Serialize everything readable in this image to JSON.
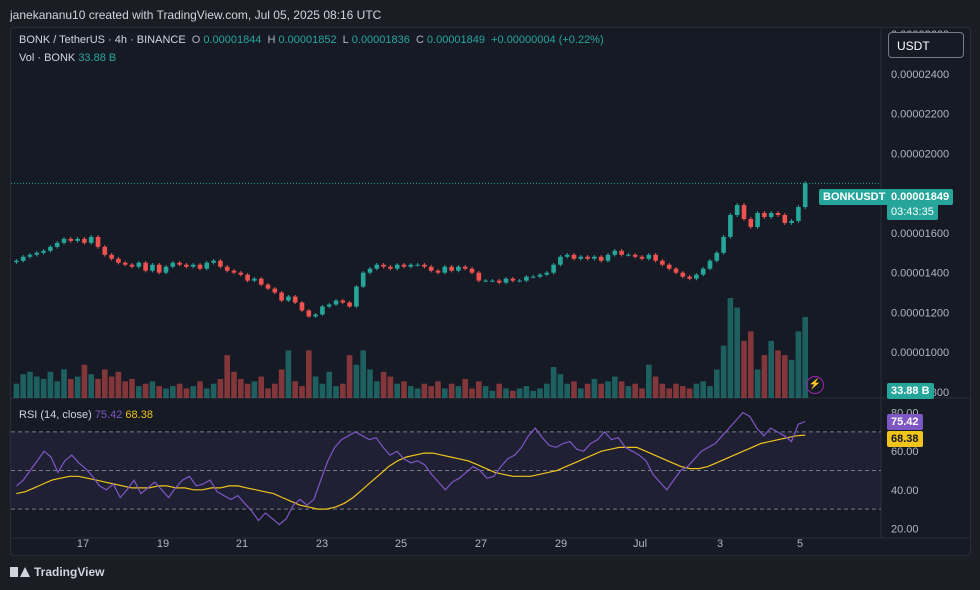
{
  "attribution": "janekananu10 created with TradingView.com, Jul 05, 2025 08:16 UTC",
  "header": {
    "symbol": "BONK / TetherUS · 4h · BINANCE",
    "open_label": "O",
    "open": "0.00001844",
    "high_label": "H",
    "high": "0.00001852",
    "low_label": "L",
    "low": "0.00001836",
    "close_label": "C",
    "close": "0.00001849",
    "change": "+0.00000004 (+0.22%)"
  },
  "volume_legend": {
    "label": "Vol · BONK",
    "value": "33.88 B"
  },
  "currency_button": "USDT",
  "price_tag": {
    "symbol": "BONKUSDT",
    "price": "0.00001849",
    "countdown": "03:43:35"
  },
  "volume_tag": "33.88 B",
  "rsi_legend": {
    "label": "RSI (14, close)",
    "rsi": "75.42",
    "ma": "68.38"
  },
  "logo": "TradingView",
  "colors": {
    "up": "#26a69a",
    "down": "#ef5350",
    "rsi": "#7e57c2",
    "rsi_ma": "#f0c419",
    "background": "#161a25"
  },
  "chart_data": {
    "type": "candlestick",
    "timeframe": "4h",
    "x_ticks": [
      "17",
      "19",
      "21",
      "23",
      "25",
      "27",
      "29",
      "Jul",
      "3",
      "5"
    ],
    "price_axis_ticks": [
      "0.00002600",
      "0.00002400",
      "0.00002200",
      "0.00002000",
      "0.00001800",
      "0.00001600",
      "0.00001400",
      "0.00001200",
      "0.00001000",
      "0.00000800"
    ],
    "price_range": [
      7.7e-06,
      2.63e-05
    ],
    "last_price": 1.849e-05,
    "close_series": [
      14.6,
      14.8,
      14.9,
      15.0,
      15.1,
      15.3,
      15.5,
      15.7,
      15.6,
      15.7,
      15.5,
      15.8,
      15.3,
      14.9,
      14.7,
      14.5,
      14.4,
      14.3,
      14.5,
      14.1,
      14.4,
      14.0,
      14.3,
      14.5,
      14.4,
      14.3,
      14.4,
      14.2,
      14.5,
      14.6,
      14.3,
      14.1,
      14.0,
      13.9,
      13.6,
      13.7,
      13.4,
      13.2,
      13.0,
      12.6,
      12.8,
      12.5,
      12.1,
      11.8,
      11.9,
      12.3,
      12.4,
      12.6,
      12.5,
      12.3,
      13.3,
      14.0,
      14.2,
      14.4,
      14.3,
      14.2,
      14.4,
      14.3,
      14.4,
      14.4,
      14.3,
      14.1,
      14.0,
      14.3,
      14.1,
      14.3,
      14.2,
      14.0,
      13.6,
      13.6,
      13.6,
      13.5,
      13.7,
      13.6,
      13.6,
      13.8,
      13.8,
      13.9,
      14.0,
      14.4,
      14.8,
      14.9,
      14.7,
      14.8,
      14.7,
      14.8,
      14.6,
      14.9,
      15.1,
      14.9,
      14.9,
      14.8,
      14.7,
      14.9,
      14.6,
      14.4,
      14.2,
      14.0,
      13.8,
      13.7,
      13.9,
      14.2,
      14.6,
      15.0,
      15.8,
      16.9,
      17.4,
      16.7,
      16.3,
      17.0,
      16.8,
      17.0,
      16.9,
      16.5,
      16.6,
      17.3,
      18.49
    ],
    "volume_series": [
      0.3,
      0.5,
      0.55,
      0.45,
      0.4,
      0.55,
      0.35,
      0.6,
      0.4,
      0.45,
      0.7,
      0.5,
      0.4,
      0.6,
      0.45,
      0.55,
      0.35,
      0.4,
      0.25,
      0.3,
      0.35,
      0.25,
      0.2,
      0.25,
      0.3,
      0.2,
      0.25,
      0.35,
      0.2,
      0.3,
      0.4,
      0.9,
      0.55,
      0.4,
      0.3,
      0.35,
      0.45,
      0.2,
      0.3,
      0.6,
      1.0,
      0.35,
      0.25,
      1.0,
      0.45,
      0.3,
      0.55,
      0.25,
      0.3,
      0.9,
      0.7,
      1.0,
      0.6,
      0.35,
      0.55,
      0.45,
      0.3,
      0.35,
      0.25,
      0.2,
      0.3,
      0.25,
      0.35,
      0.2,
      0.3,
      0.25,
      0.4,
      0.2,
      0.35,
      0.25,
      0.15,
      0.3,
      0.2,
      0.15,
      0.2,
      0.25,
      0.15,
      0.2,
      0.3,
      0.65,
      0.5,
      0.3,
      0.35,
      0.2,
      0.3,
      0.4,
      0.3,
      0.35,
      0.45,
      0.35,
      0.25,
      0.3,
      0.2,
      0.7,
      0.45,
      0.3,
      0.2,
      0.3,
      0.25,
      0.2,
      0.3,
      0.35,
      0.25,
      0.6,
      1.1,
      2.1,
      1.9,
      1.2,
      1.4,
      0.6,
      0.9,
      1.2,
      1.0,
      0.9,
      0.8,
      1.4,
      1.7
    ],
    "rsi_axis_ticks": [
      "80.00",
      "60.00",
      "40.00",
      "20.00"
    ],
    "rsi_range": [
      15,
      85
    ],
    "rsi_bands": [
      30,
      50,
      70
    ],
    "rsi_series": [
      {
        "name": "RSI",
        "values": [
          42,
          45,
          50,
          55,
          60,
          57,
          49,
          55,
          58,
          54,
          51,
          47,
          42,
          40,
          43,
          36,
          40,
          45,
          38,
          41,
          44,
          40,
          36,
          41,
          45,
          47,
          42,
          43,
          45,
          39,
          37,
          35,
          37,
          33,
          29,
          24,
          28,
          25,
          22,
          25,
          32,
          35,
          32,
          35,
          45,
          55,
          62,
          66,
          68,
          70,
          68,
          66,
          67,
          62,
          58,
          60,
          56,
          54,
          55,
          53,
          48,
          44,
          40,
          44,
          46,
          49,
          52,
          50,
          46,
          47,
          52,
          56,
          58,
          62,
          68,
          72,
          67,
          63,
          62,
          64,
          65,
          61,
          60,
          64,
          66,
          70,
          66,
          67,
          62,
          60,
          58,
          55,
          48,
          44,
          40,
          45,
          50,
          52,
          56,
          60,
          62,
          64,
          68,
          72,
          76,
          80,
          78,
          72,
          68,
          72,
          70,
          68,
          65,
          74,
          75.42
        ]
      },
      {
        "name": "MA",
        "values": [
          38,
          39,
          41,
          43,
          45,
          46,
          47,
          47,
          46,
          45,
          44,
          43,
          42,
          41,
          41,
          41,
          42,
          42,
          41,
          41,
          40,
          40,
          41,
          41,
          42,
          42,
          41,
          40,
          39,
          38,
          36,
          34,
          32,
          31,
          30,
          30,
          31,
          33,
          36,
          40,
          44,
          48,
          52,
          55,
          57,
          58,
          59,
          59,
          58,
          57,
          56,
          55,
          53,
          51,
          49,
          48,
          47,
          47,
          47,
          48,
          49,
          50,
          52,
          54,
          56,
          58,
          60,
          61,
          62,
          62,
          62,
          60,
          58,
          56,
          54,
          52,
          51,
          51,
          52,
          54,
          56,
          58,
          60,
          62,
          64,
          65,
          66,
          67,
          68,
          68.38
        ]
      }
    ]
  }
}
